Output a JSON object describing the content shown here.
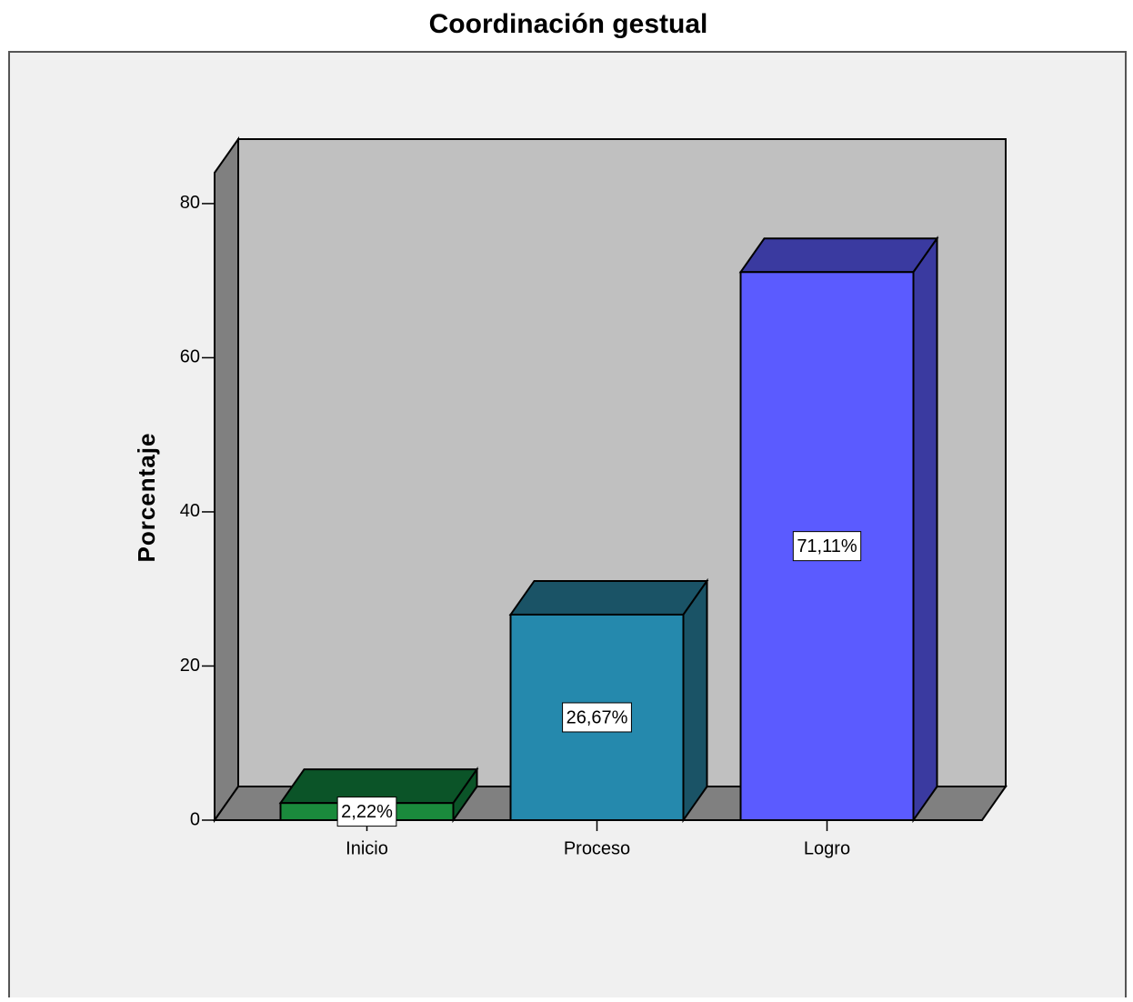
{
  "chart_data": {
    "type": "bar3d",
    "title": "Coordinación gestual",
    "ylabel": "Porcentaje",
    "categories": [
      "Inicio",
      "Proceso",
      "Logro"
    ],
    "values": [
      2.22,
      26.67,
      71.11
    ],
    "value_labels": [
      "2,22%",
      "26,67%",
      "71,11%"
    ],
    "colors": [
      "#1a8a3c",
      "#2589ad",
      "#5b5bff"
    ],
    "top_colors": [
      "#0b5428",
      "#1a5366",
      "#3a3aa0"
    ],
    "ylim": [
      0,
      84
    ],
    "yticks": [
      0,
      20,
      40,
      60,
      80
    ]
  }
}
